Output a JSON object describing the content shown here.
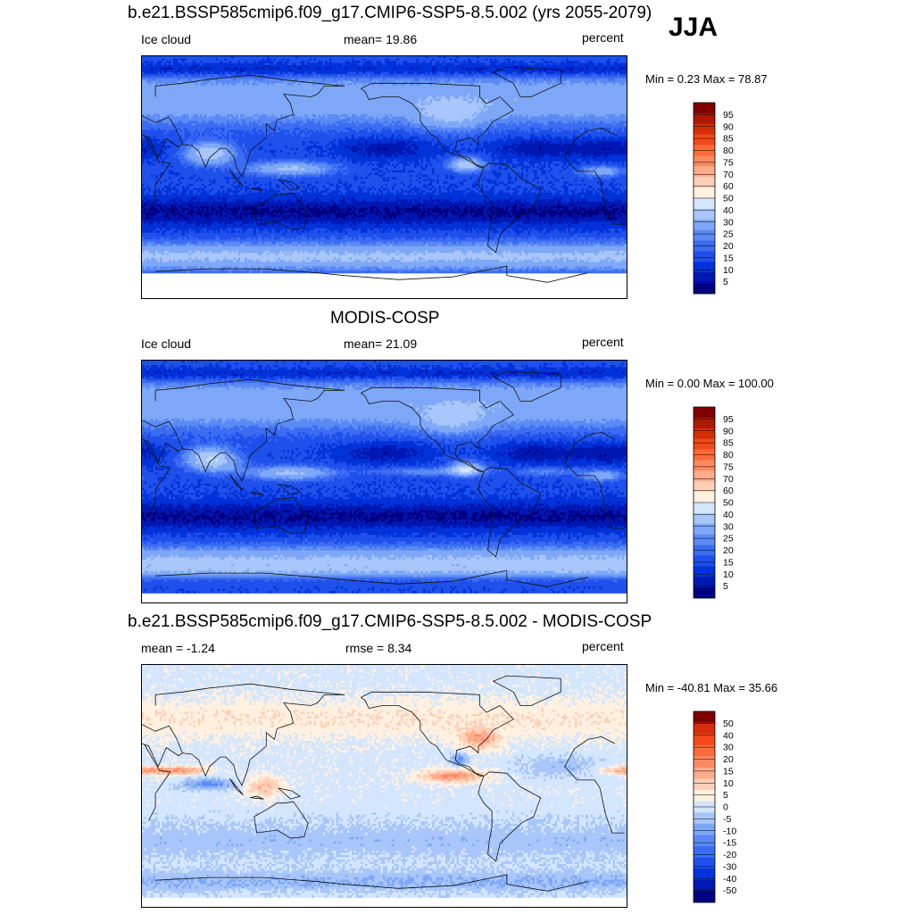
{
  "season": "JJA",
  "colors": {
    "seq": [
      "#000080",
      "#0018b3",
      "#0032d9",
      "#1f50ec",
      "#3b6cf2",
      "#5b8af5",
      "#7ea8f7",
      "#a8c6f9",
      "#d4e6fd",
      "#fff0e0",
      "#ffd0b8",
      "#ffac8c",
      "#ff8960",
      "#ff6a3a",
      "#f24a1a",
      "#d42e0a",
      "#aa1a00",
      "#800000"
    ],
    "diff": [
      "#000080",
      "#0018b3",
      "#0032d9",
      "#1f50ec",
      "#3b6cf2",
      "#5b8af5",
      "#7ea8f7",
      "#a8c6f9",
      "#d4e6fd",
      "#fff0e0",
      "#ffd0b8",
      "#ffac8c",
      "#ff8960",
      "#ff6a3a",
      "#f24a1a",
      "#d42e0a",
      "#800000"
    ]
  },
  "panels": [
    {
      "title": "b.e21.BSSP585cmip6.f09_g17.CMIP6-SSP5-8.5.002 (yrs 2055-2079)",
      "left_label": "Ice cloud",
      "center_label": "mean=  19.86",
      "units": "percent",
      "minmax": "Min =    0.23 Max =  78.87",
      "colorbar_labels": [
        "95",
        "90",
        "85",
        "80",
        "75",
        "70",
        "60",
        "50",
        "40",
        "30",
        "25",
        "20",
        "15",
        "10",
        "5"
      ]
    },
    {
      "title": "MODIS-COSP",
      "left_label": "Ice cloud",
      "center_label": "mean=  21.09",
      "units": "percent",
      "minmax": "Min =    0.00 Max = 100.00",
      "colorbar_labels": [
        "95",
        "90",
        "85",
        "80",
        "75",
        "70",
        "60",
        "50",
        "40",
        "30",
        "25",
        "20",
        "15",
        "10",
        "5"
      ]
    },
    {
      "title": "b.e21.BSSP585cmip6.f09_g17.CMIP6-SSP5-8.5.002 - MODIS-COSP",
      "left_label": "mean =  -1.24",
      "center_label": "rmse =   8.34",
      "units": "percent",
      "minmax": "Min = -40.81 Max =  35.66",
      "colorbar_labels": [
        "50",
        "40",
        "30",
        "20",
        "15",
        "10",
        "5",
        "0",
        "-5",
        "-10",
        "-15",
        "-20",
        "-30",
        "-40",
        "-50"
      ]
    }
  ],
  "chart_data": [
    {
      "type": "heatmap",
      "title": "b.e21.BSSP585cmip6.f09_g17.CMIP6-SSP5-8.5.002 (yrs 2055-2079)",
      "variable": "Ice cloud",
      "units": "percent",
      "mean": 19.86,
      "min": 0.23,
      "max": 78.87,
      "levels": [
        5,
        10,
        15,
        20,
        25,
        30,
        40,
        50,
        60,
        70,
        75,
        80,
        85,
        90,
        95
      ]
    },
    {
      "type": "heatmap",
      "title": "MODIS-COSP",
      "variable": "Ice cloud",
      "units": "percent",
      "mean": 21.09,
      "min": 0.0,
      "max": 100.0,
      "levels": [
        5,
        10,
        15,
        20,
        25,
        30,
        40,
        50,
        60,
        70,
        75,
        80,
        85,
        90,
        95
      ]
    },
    {
      "type": "heatmap",
      "title": "b.e21.BSSP585cmip6.f09_g17.CMIP6-SSP5-8.5.002 - MODIS-COSP",
      "units": "percent",
      "mean": -1.24,
      "rmse": 8.34,
      "min": -40.81,
      "max": 35.66,
      "levels": [
        -50,
        -40,
        -30,
        -20,
        -15,
        -10,
        -5,
        0,
        5,
        10,
        15,
        20,
        30,
        40,
        50
      ]
    }
  ]
}
